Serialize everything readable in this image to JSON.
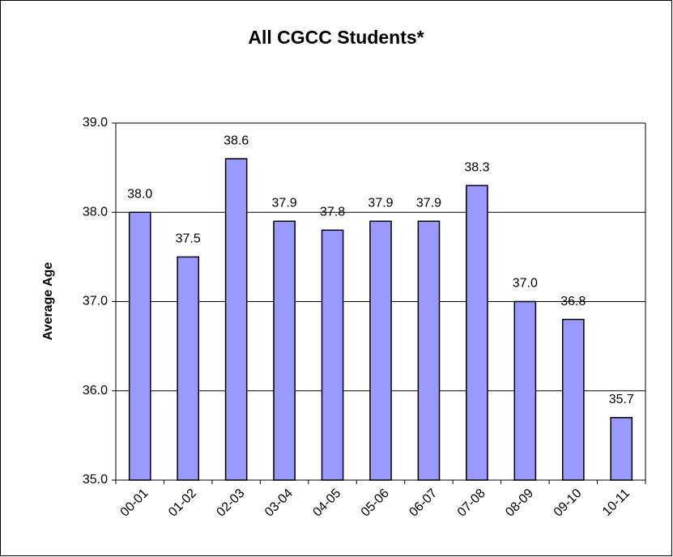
{
  "chart_data": {
    "type": "bar",
    "title": "All CGCC Students*",
    "y_label": "Average Age",
    "categories": [
      "00-01",
      "01-02",
      "02-03",
      "03-04",
      "04-05",
      "05-06",
      "06-07",
      "07-08",
      "08-09",
      "09-10",
      "10-11"
    ],
    "values": [
      38.0,
      37.5,
      38.6,
      37.9,
      37.8,
      37.9,
      37.9,
      38.3,
      37.0,
      36.8,
      35.7
    ],
    "value_labels": [
      "38.0",
      "37.5",
      "38.6",
      "37.9",
      "37.8",
      "37.9",
      "37.9",
      "38.3",
      "37.0",
      "36.8",
      "35.7"
    ],
    "color": "#9999ff",
    "ylim": [
      35,
      39
    ],
    "yticks": [
      {
        "value": 35,
        "label": "35.0"
      },
      {
        "value": 36,
        "label": "36.0"
      },
      {
        "value": 37,
        "label": "37.0"
      },
      {
        "value": 38,
        "label": "38.0"
      },
      {
        "value": 39,
        "label": "39.0"
      }
    ],
    "grid": true
  }
}
